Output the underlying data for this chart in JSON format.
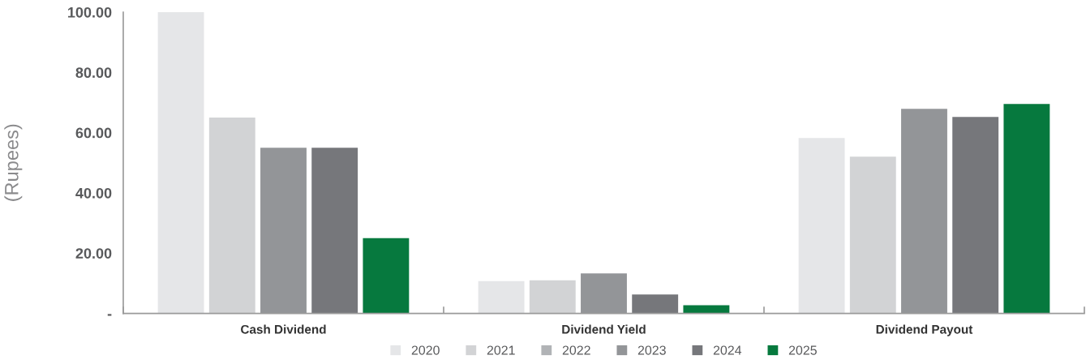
{
  "chart_data": {
    "type": "bar",
    "ylabel": "(Rupees)",
    "categories": [
      "Cash Dividend",
      "Dividend Yield",
      "Dividend Payout"
    ],
    "series": [
      {
        "name": "2020",
        "color": "#e5e6e8",
        "values": [
          100,
          10.7,
          58.2
        ]
      },
      {
        "name": "2021",
        "color": "#d2d3d5",
        "values": [
          65,
          11.0,
          52.0
        ]
      },
      {
        "name": "2022",
        "color": "#b1b3b6",
        "values": [
          null,
          null,
          null
        ]
      },
      {
        "name": "2023",
        "color": "#939598",
        "values": [
          55,
          13.3,
          67.9
        ]
      },
      {
        "name": "2024",
        "color": "#76777b",
        "values": [
          55,
          6.3,
          65.2
        ]
      },
      {
        "name": "2025",
        "color": "#06793e",
        "values": [
          25,
          2.7,
          69.5
        ]
      }
    ],
    "ylim": [
      0,
      100
    ],
    "yticks": [
      {
        "value": 0,
        "label": "-"
      },
      {
        "value": 20,
        "label": "20.00"
      },
      {
        "value": 40,
        "label": "40.00"
      },
      {
        "value": 60,
        "label": "60.00"
      },
      {
        "value": 80,
        "label": "80.00"
      },
      {
        "value": 100,
        "label": "100.00"
      }
    ],
    "grid": false,
    "legend": "bottom"
  }
}
